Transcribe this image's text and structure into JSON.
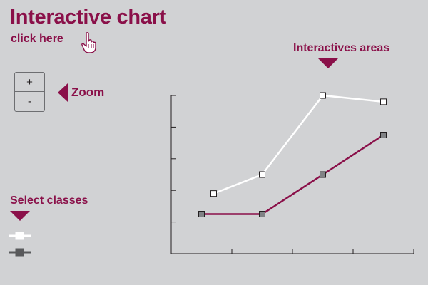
{
  "header": {
    "title": "Interactive chart",
    "click_label": "click here"
  },
  "zoom": {
    "plus_label": "+",
    "minus_label": "-",
    "label": "Zoom"
  },
  "annotations": {
    "interactive_areas": "Interactives areas",
    "select_classes": "Select classes"
  },
  "classes": [
    {
      "color": "#ffffff",
      "marker": "white-square"
    },
    {
      "color": "#58595b",
      "marker": "gray-square"
    }
  ],
  "colors": {
    "accent": "#8a1049",
    "background": "#d1d2d4",
    "axis": "#231f20"
  },
  "chart_data": {
    "type": "line",
    "series": [
      {
        "color": "#ffffff",
        "marker_fill": "#ffffff",
        "points": [
          [
            0.7,
            1.9
          ],
          [
            1.5,
            2.5
          ],
          [
            2.5,
            5.0
          ],
          [
            3.5,
            4.8
          ]
        ]
      },
      {
        "color": "#8a1049",
        "marker_fill": "#808285",
        "points": [
          [
            0.5,
            1.25
          ],
          [
            1.5,
            1.25
          ],
          [
            2.5,
            2.5
          ],
          [
            3.5,
            3.75
          ]
        ]
      }
    ],
    "xlim": [
      0,
      4
    ],
    "ylim": [
      0,
      5
    ],
    "x_ticks": 4,
    "y_ticks": 5
  }
}
